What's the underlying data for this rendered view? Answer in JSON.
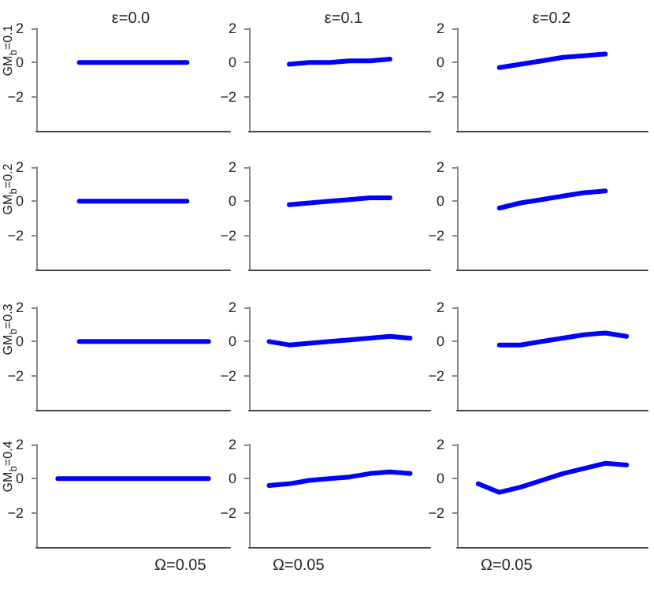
{
  "chart_data": [
    {
      "type": "line",
      "title": "ε=0.0",
      "ylabel": "GM$_{b}$=0.1",
      "categories": [
        null,
        null,
        null,
        null,
        null,
        null,
        null,
        null,
        null,
        null
      ],
      "series": [
        {
          "color": "#0000ff",
          "values": [
            null,
            null,
            0,
            0,
            0,
            0,
            0,
            0,
            null,
            null
          ]
        }
      ],
      "ylim": [
        -4,
        2
      ],
      "yticks": [
        -2,
        0,
        2
      ],
      "grid": false,
      "marker": "none",
      "line_style": "solid",
      "tick_labels": "y"
    },
    {
      "type": "line",
      "title": "ε=0.1",
      "categories": [
        null,
        null,
        null,
        null,
        null,
        null,
        null,
        null,
        null,
        null
      ],
      "series": [
        {
          "color": "#0000ff",
          "values": [
            null,
            null,
            -0.1,
            0,
            0,
            0.1,
            0.1,
            0.2,
            null,
            null
          ]
        }
      ],
      "ylim": [
        -4,
        2
      ],
      "yticks": [
        -2,
        0,
        2
      ],
      "grid": false,
      "marker": "none",
      "line_style": "solid",
      "tick_labels": "y"
    },
    {
      "type": "line",
      "title": "ε=0.2",
      "categories": [
        null,
        null,
        null,
        null,
        null,
        null,
        null,
        null,
        null,
        null
      ],
      "series": [
        {
          "color": "#0000ff",
          "values": [
            null,
            null,
            -0.3,
            -0.1,
            0.1,
            0.3,
            0.4,
            0.5,
            null,
            null
          ]
        }
      ],
      "ylim": [
        -4,
        2
      ],
      "yticks": [
        -2,
        0,
        2
      ],
      "grid": false,
      "marker": "none",
      "line_style": "solid",
      "tick_labels": "y"
    },
    {
      "type": "line",
      "ylabel": "GM$_{b}$=0.2",
      "categories": [
        null,
        null,
        null,
        null,
        null,
        null,
        null,
        null,
        null,
        null
      ],
      "series": [
        {
          "color": "#0000ff",
          "values": [
            null,
            null,
            0,
            0,
            0,
            0,
            0,
            0,
            null,
            null
          ]
        }
      ],
      "ylim": [
        -4,
        2
      ],
      "yticks": [
        -2,
        0,
        2
      ],
      "grid": false,
      "marker": "none",
      "line_style": "solid",
      "tick_labels": "y"
    },
    {
      "type": "line",
      "categories": [
        null,
        null,
        null,
        null,
        null,
        null,
        null,
        null,
        null,
        null
      ],
      "series": [
        {
          "color": "#0000ff",
          "values": [
            null,
            null,
            -0.2,
            -0.1,
            0,
            0.1,
            0.2,
            0.2,
            null,
            null
          ]
        }
      ],
      "ylim": [
        -4,
        2
      ],
      "yticks": [
        -2,
        0,
        2
      ],
      "grid": false,
      "marker": "none",
      "line_style": "solid",
      "tick_labels": "y"
    },
    {
      "type": "line",
      "categories": [
        null,
        null,
        null,
        null,
        null,
        null,
        null,
        null,
        null,
        null
      ],
      "series": [
        {
          "color": "#0000ff",
          "values": [
            null,
            null,
            -0.4,
            -0.1,
            0.1,
            0.3,
            0.5,
            0.6,
            null,
            null
          ]
        }
      ],
      "ylim": [
        -4,
        2
      ],
      "yticks": [
        -2,
        0,
        2
      ],
      "grid": false,
      "marker": "none",
      "line_style": "solid",
      "tick_labels": "y"
    },
    {
      "type": "line",
      "ylabel": "GM$_{b}$=0.3",
      "categories": [
        null,
        null,
        null,
        null,
        null,
        null,
        null,
        null,
        null,
        null
      ],
      "series": [
        {
          "color": "#0000ff",
          "values": [
            null,
            null,
            0,
            0,
            0,
            0,
            0,
            0,
            0,
            null
          ]
        }
      ],
      "ylim": [
        -4,
        2
      ],
      "yticks": [
        -2,
        0,
        2
      ],
      "grid": false,
      "marker": "none",
      "line_style": "solid",
      "tick_labels": "y"
    },
    {
      "type": "line",
      "categories": [
        null,
        null,
        null,
        null,
        null,
        null,
        null,
        null,
        null,
        null
      ],
      "series": [
        {
          "color": "#0000ff",
          "values": [
            null,
            0,
            -0.2,
            -0.1,
            0,
            0.1,
            0.2,
            0.3,
            0.2,
            null
          ]
        }
      ],
      "ylim": [
        -4,
        2
      ],
      "yticks": [
        -2,
        0,
        2
      ],
      "grid": false,
      "marker": "none",
      "line_style": "solid",
      "tick_labels": "y"
    },
    {
      "type": "line",
      "categories": [
        null,
        null,
        null,
        null,
        null,
        null,
        null,
        null,
        null,
        null
      ],
      "series": [
        {
          "color": "#0000ff",
          "values": [
            null,
            null,
            -0.2,
            -0.2,
            0,
            0.2,
            0.4,
            0.5,
            0.3,
            null
          ]
        }
      ],
      "ylim": [
        -4,
        2
      ],
      "yticks": [
        -2,
        0,
        2
      ],
      "grid": false,
      "marker": "none",
      "line_style": "solid",
      "tick_labels": "y"
    },
    {
      "type": "line",
      "ylabel": "GM$_{b}$=0.4",
      "annotations": [
        "Ω=0.05"
      ],
      "categories": [
        null,
        null,
        null,
        null,
        null,
        null,
        null,
        null,
        null,
        null
      ],
      "series": [
        {
          "color": "#0000ff",
          "values": [
            null,
            0,
            0,
            0,
            0,
            0,
            0,
            0,
            0,
            null
          ]
        }
      ],
      "ylim": [
        -4,
        2
      ],
      "yticks": [
        -2,
        0,
        2
      ],
      "grid": false,
      "marker": "none",
      "line_style": "solid",
      "tick_labels": "y"
    },
    {
      "type": "line",
      "annotations": [
        "Ω=0.05"
      ],
      "categories": [
        null,
        null,
        null,
        null,
        null,
        null,
        null,
        null,
        null,
        null
      ],
      "series": [
        {
          "color": "#0000ff",
          "values": [
            null,
            -0.4,
            -0.3,
            -0.1,
            0,
            0.1,
            0.3,
            0.4,
            0.3,
            null
          ]
        }
      ],
      "ylim": [
        -4,
        2
      ],
      "yticks": [
        -2,
        0,
        2
      ],
      "grid": false,
      "marker": "none",
      "line_style": "solid",
      "tick_labels": "y"
    },
    {
      "type": "line",
      "annotations": [
        "Ω=0.05"
      ],
      "categories": [
        null,
        null,
        null,
        null,
        null,
        null,
        null,
        null,
        null,
        null
      ],
      "series": [
        {
          "color": "#0000ff",
          "values": [
            null,
            -0.3,
            -0.8,
            -0.5,
            -0.1,
            0.3,
            0.6,
            0.9,
            0.8,
            null
          ]
        }
      ],
      "ylim": [
        -4,
        2
      ],
      "yticks": [
        -2,
        0,
        2
      ],
      "grid": false,
      "marker": "none",
      "line_style": "solid",
      "tick_labels": "y"
    }
  ]
}
